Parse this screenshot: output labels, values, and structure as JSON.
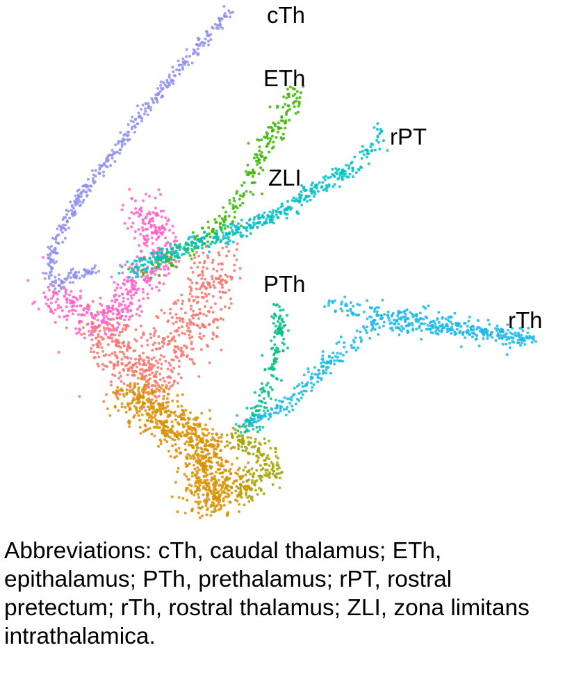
{
  "chart_data": {
    "type": "scatter",
    "title": "",
    "xlabel": "",
    "ylabel": "",
    "xlim": [
      0,
      813
    ],
    "ylim": [
      0,
      760
    ],
    "axes_visible": false,
    "grid": false,
    "legend": "none",
    "labels": [
      {
        "text": "cTh",
        "x": 384,
        "y": 33
      },
      {
        "text": "ETh",
        "x": 379,
        "y": 124
      },
      {
        "text": "rPT",
        "x": 561,
        "y": 208
      },
      {
        "text": "ZLI",
        "x": 386,
        "y": 267
      },
      {
        "text": "PTh",
        "x": 379,
        "y": 420
      },
      {
        "text": "rTh",
        "x": 731,
        "y": 472
      }
    ],
    "series": [
      {
        "color": "#8f8ff0",
        "path": [
          [
            328,
            18
          ],
          [
            300,
            52
          ],
          [
            265,
            90
          ],
          [
            225,
            140
          ],
          [
            185,
            190
          ],
          [
            150,
            240
          ],
          [
            118,
            280
          ],
          [
            95,
            318
          ],
          [
            78,
            355
          ],
          [
            70,
            390
          ],
          [
            82,
            410
          ],
          [
            110,
            395
          ],
          [
            140,
            388
          ]
        ],
        "spread": 4,
        "count": 420
      },
      {
        "color": "#ff63c8",
        "path": [
          [
            70,
            420
          ],
          [
            95,
            440
          ],
          [
            130,
            455
          ],
          [
            160,
            460
          ],
          [
            175,
            440
          ],
          [
            190,
            410
          ],
          [
            215,
            390
          ],
          [
            235,
            370
          ],
          [
            225,
            340
          ],
          [
            200,
            300
          ]
        ],
        "spread": 14,
        "count": 520
      },
      {
        "color": "#f8766d",
        "path": [
          [
            140,
            470
          ],
          [
            165,
            500
          ],
          [
            190,
            525
          ],
          [
            215,
            550
          ],
          [
            240,
            520
          ],
          [
            265,
            485
          ],
          [
            285,
            450
          ],
          [
            300,
            410
          ],
          [
            310,
            380
          ]
        ],
        "spread": 22,
        "count": 620
      },
      {
        "color": "#d89000",
        "path": [
          [
            185,
            565
          ],
          [
            215,
            585
          ],
          [
            245,
            610
          ],
          [
            275,
            630
          ],
          [
            300,
            650
          ],
          [
            290,
            690
          ],
          [
            300,
            720
          ],
          [
            320,
            705
          ],
          [
            345,
            690
          ]
        ],
        "spread": 16,
        "count": 820
      },
      {
        "color": "#a3a500",
        "path": [
          [
            330,
            625
          ],
          [
            355,
            640
          ],
          [
            380,
            655
          ],
          [
            395,
            675
          ],
          [
            375,
            690
          ],
          [
            350,
            705
          ]
        ],
        "spread": 10,
        "count": 180
      },
      {
        "color": "#39b600",
        "path": [
          [
            205,
            385
          ],
          [
            245,
            375
          ],
          [
            285,
            345
          ],
          [
            320,
            320
          ],
          [
            345,
            290
          ],
          [
            360,
            255
          ],
          [
            380,
            210
          ],
          [
            405,
            170
          ],
          [
            430,
            130
          ]
        ],
        "spread": 8,
        "count": 260
      },
      {
        "color": "#00bfc4",
        "path": [
          [
            180,
            390
          ],
          [
            230,
            370
          ],
          [
            275,
            352
          ],
          [
            320,
            340
          ],
          [
            370,
            320
          ],
          [
            420,
            295
          ],
          [
            470,
            265
          ],
          [
            510,
            240
          ],
          [
            545,
            205
          ],
          [
            548,
            190
          ]
        ],
        "spread": 6,
        "count": 430
      },
      {
        "color": "#00bf7d",
        "path": [
          [
            400,
            435
          ],
          [
            405,
            460
          ],
          [
            400,
            490
          ],
          [
            395,
            520
          ],
          [
            385,
            550
          ],
          [
            375,
            580
          ],
          [
            360,
            605
          ],
          [
            345,
            620
          ]
        ],
        "spread": 6,
        "count": 150
      },
      {
        "color": "#19b8e6",
        "path": [
          [
            345,
            615
          ],
          [
            380,
            600
          ],
          [
            420,
            575
          ],
          [
            450,
            545
          ],
          [
            480,
            515
          ],
          [
            510,
            495
          ],
          [
            530,
            470
          ],
          [
            560,
            465
          ],
          [
            600,
            468
          ],
          [
            650,
            475
          ],
          [
            700,
            482
          ],
          [
            745,
            487
          ],
          [
            768,
            482
          ],
          [
            540,
            450
          ],
          [
            510,
            445
          ],
          [
            470,
            438
          ]
        ],
        "spread": 7,
        "count": 560
      }
    ]
  },
  "caption": "Abbreviations: cTh, caudal thalamus; ETh, epithalamus; PTh, prethalamus; rPT, rostral pretectum; rTh, rostral thalamus; ZLI, zona limitans intrathalamica."
}
